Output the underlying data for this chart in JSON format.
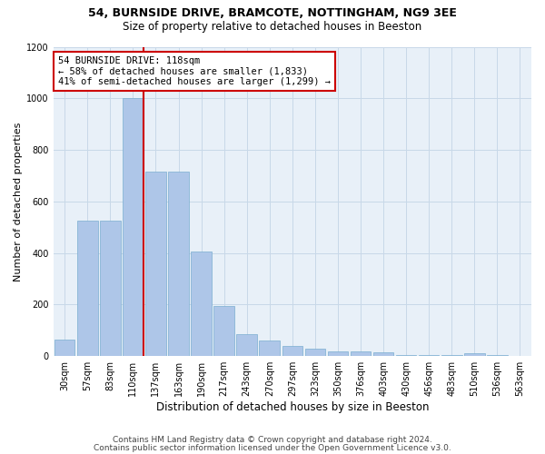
{
  "title1": "54, BURNSIDE DRIVE, BRAMCOTE, NOTTINGHAM, NG9 3EE",
  "title2": "Size of property relative to detached houses in Beeston",
  "xlabel": "Distribution of detached houses by size in Beeston",
  "ylabel": "Number of detached properties",
  "categories": [
    "30sqm",
    "57sqm",
    "83sqm",
    "110sqm",
    "137sqm",
    "163sqm",
    "190sqm",
    "217sqm",
    "243sqm",
    "270sqm",
    "297sqm",
    "323sqm",
    "350sqm",
    "376sqm",
    "403sqm",
    "430sqm",
    "456sqm",
    "483sqm",
    "510sqm",
    "536sqm",
    "563sqm"
  ],
  "values": [
    65,
    525,
    525,
    1000,
    715,
    715,
    405,
    195,
    85,
    60,
    40,
    30,
    18,
    18,
    15,
    5,
    5,
    5,
    10,
    5,
    0
  ],
  "bar_color": "#aec6e8",
  "bar_edge_color": "#7aaed0",
  "property_bin_index": 3,
  "annotation_line1": "54 BURNSIDE DRIVE: 118sqm",
  "annotation_line2": "← 58% of detached houses are smaller (1,833)",
  "annotation_line3": "41% of semi-detached houses are larger (1,299) →",
  "annotation_box_color": "#ffffff",
  "annotation_box_edge_color": "#cc0000",
  "vline_color": "#cc0000",
  "grid_color": "#c8d8e8",
  "bg_color": "#e8f0f8",
  "footnote1": "Contains HM Land Registry data © Crown copyright and database right 2024.",
  "footnote2": "Contains public sector information licensed under the Open Government Licence v3.0.",
  "ylim": [
    0,
    1200
  ],
  "yticks": [
    0,
    200,
    400,
    600,
    800,
    1000,
    1200
  ],
  "title1_fontsize": 9,
  "title2_fontsize": 8.5,
  "ylabel_fontsize": 8,
  "xlabel_fontsize": 8.5,
  "tick_fontsize": 7,
  "annot_fontsize": 7.5,
  "footnote_fontsize": 6.5
}
